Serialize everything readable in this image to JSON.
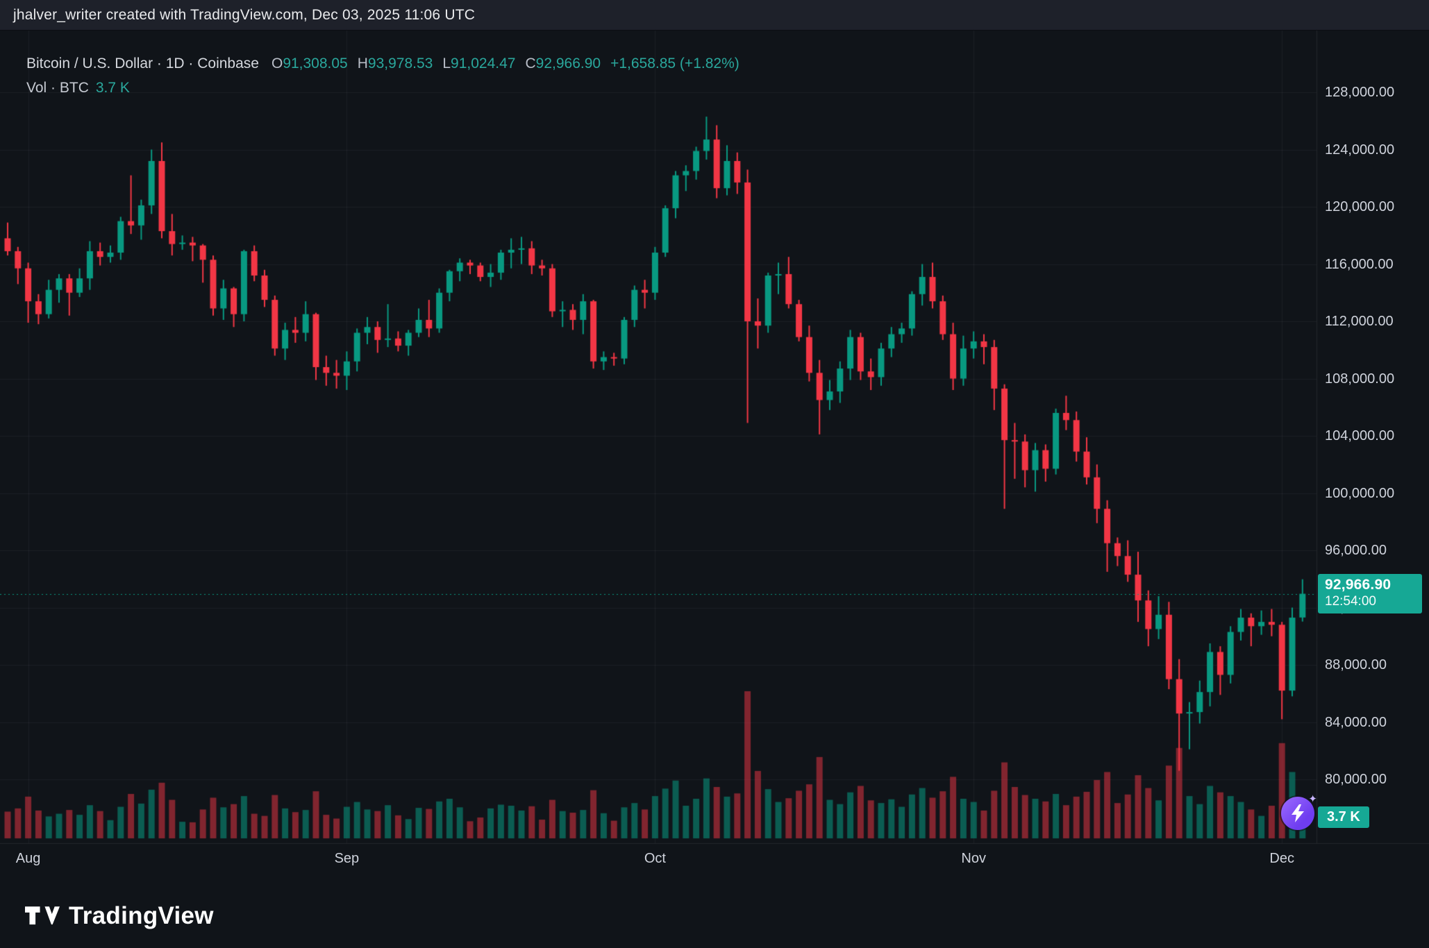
{
  "header": {
    "attribution": "jhalver_writer created with TradingView.com, Dec 03, 2025 11:06 UTC"
  },
  "legend": {
    "title": "Bitcoin / U.S. Dollar · 1D · Coinbase",
    "o_label": "O",
    "o_value": "91,308.05",
    "h_label": "H",
    "h_value": "93,978.53",
    "l_label": "L",
    "l_value": "91,024.47",
    "c_label": "C",
    "c_value": "92,966.90",
    "change": "+1,658.85 (+1.82%)",
    "vol_title": "Vol · BTC",
    "vol_value": "3.7 K"
  },
  "price_scale": {
    "last_price": "92,966.90",
    "countdown": "12:54:00"
  },
  "volume_badge": {
    "value": "3.7 K"
  },
  "footer": {
    "brand": "TradingView"
  },
  "colors": {
    "up": "#089981",
    "down": "#f23645",
    "value_text": "#2aa79c",
    "badge": "#16a895",
    "axis_text": "#cfd3dc",
    "bg": "#101419",
    "header_bg": "#1e212a",
    "vol_up": "rgba(8,153,129,0.55)",
    "vol_down": "rgba(242,54,69,0.5)",
    "grid": "rgba(240,243,250,0.055)"
  },
  "chart_data": {
    "type": "candlestick",
    "title": "Bitcoin / U.S. Dollar",
    "interval": "1D",
    "exchange": "Coinbase",
    "units": "prices in thousands of USD; volume in thousands of BTC",
    "ohlc_current": {
      "open": 91308.05,
      "high": 93978.53,
      "low": 91024.47,
      "close": 92966.9,
      "change_abs": 1658.85,
      "change_pct": 1.82
    },
    "volume_current_kbtc": 3.7,
    "price_axis": {
      "min": 80000,
      "max": 128000,
      "step": 4000
    },
    "time_axis_months": [
      {
        "label": "Aug",
        "index": 2
      },
      {
        "label": "Sep",
        "index": 33
      },
      {
        "label": "Oct",
        "index": 63
      },
      {
        "label": "Nov",
        "index": 94
      },
      {
        "label": "Dec",
        "index": 124
      }
    ],
    "candles": [
      [
        "Jul 30",
        117.8,
        118.9,
        116.6,
        116.9,
        5.0
      ],
      [
        "Jul 31",
        116.9,
        117.2,
        114.6,
        115.7,
        5.6
      ],
      [
        "Aug 1",
        115.7,
        116.1,
        111.9,
        113.4,
        7.8
      ],
      [
        "Aug 2",
        113.4,
        113.9,
        111.8,
        112.5,
        5.2
      ],
      [
        "Aug 3",
        112.5,
        114.9,
        112.2,
        114.2,
        4.1
      ],
      [
        "Aug 4",
        114.2,
        115.3,
        113.3,
        115.0,
        4.6
      ],
      [
        "Aug 5",
        115.0,
        115.3,
        112.4,
        114.0,
        5.3
      ],
      [
        "Aug 6",
        114.0,
        115.7,
        113.7,
        115.0,
        4.4
      ],
      [
        "Aug 7",
        115.0,
        117.6,
        114.2,
        116.9,
        6.2
      ],
      [
        "Aug 8",
        116.9,
        117.5,
        115.9,
        116.5,
        5.1
      ],
      [
        "Aug 9",
        116.5,
        117.3,
        116.1,
        116.8,
        3.4
      ],
      [
        "Aug 10",
        116.8,
        119.3,
        116.3,
        119.0,
        5.9
      ],
      [
        "Aug 11",
        119.0,
        122.2,
        118.1,
        118.7,
        8.3
      ],
      [
        "Aug 12",
        118.7,
        120.5,
        117.7,
        120.1,
        6.5
      ],
      [
        "Aug 13",
        120.1,
        124.0,
        119.5,
        123.2,
        9.1
      ],
      [
        "Aug 14",
        123.2,
        124.5,
        117.8,
        118.3,
        10.4
      ],
      [
        "Aug 15",
        118.3,
        119.5,
        116.6,
        117.4,
        7.2
      ],
      [
        "Aug 16",
        117.4,
        118.0,
        117.0,
        117.5,
        3.1
      ],
      [
        "Aug 17",
        117.5,
        117.9,
        116.2,
        117.3,
        3.0
      ],
      [
        "Aug 18",
        117.3,
        117.4,
        114.7,
        116.3,
        5.4
      ],
      [
        "Aug 19",
        116.3,
        116.6,
        112.4,
        112.9,
        7.6
      ],
      [
        "Aug 20",
        112.9,
        114.9,
        112.1,
        114.3,
        5.8
      ],
      [
        "Aug 21",
        114.3,
        114.4,
        111.6,
        112.5,
        6.4
      ],
      [
        "Aug 22",
        112.5,
        117.0,
        112.0,
        116.9,
        7.9
      ],
      [
        "Aug 23",
        116.9,
        117.3,
        114.8,
        115.2,
        4.6
      ],
      [
        "Aug 24",
        115.2,
        115.6,
        113.0,
        113.5,
        4.2
      ],
      [
        "Aug 25",
        113.5,
        113.8,
        109.6,
        110.1,
        8.1
      ],
      [
        "Aug 26",
        110.1,
        111.9,
        109.3,
        111.4,
        5.6
      ],
      [
        "Aug 27",
        111.4,
        112.3,
        110.5,
        111.2,
        4.9
      ],
      [
        "Aug 28",
        111.2,
        113.4,
        110.6,
        112.5,
        5.3
      ],
      [
        "Aug 29",
        112.5,
        112.6,
        107.9,
        108.8,
        8.8
      ],
      [
        "Aug 30",
        108.8,
        109.6,
        107.5,
        108.4,
        4.4
      ],
      [
        "Aug 31",
        108.4,
        109.3,
        107.3,
        108.2,
        3.7
      ],
      [
        "Sep 1",
        108.2,
        109.9,
        107.2,
        109.2,
        5.9
      ],
      [
        "Sep 2",
        109.2,
        111.5,
        108.5,
        111.2,
        6.8
      ],
      [
        "Sep 3",
        111.2,
        112.3,
        110.4,
        111.6,
        5.4
      ],
      [
        "Sep 4",
        111.6,
        112.0,
        109.8,
        110.7,
        5.1
      ],
      [
        "Sep 5",
        110.7,
        113.2,
        110.2,
        110.8,
        6.2
      ],
      [
        "Sep 6",
        110.8,
        111.3,
        109.9,
        110.3,
        4.3
      ],
      [
        "Sep 7",
        110.3,
        111.4,
        109.6,
        111.2,
        3.6
      ],
      [
        "Sep 8",
        111.2,
        112.9,
        110.9,
        112.1,
        5.7
      ],
      [
        "Sep 9",
        112.1,
        113.5,
        110.9,
        111.5,
        5.5
      ],
      [
        "Sep 10",
        111.5,
        114.3,
        111.2,
        114.0,
        6.9
      ],
      [
        "Sep 11",
        114.0,
        115.6,
        113.4,
        115.5,
        7.4
      ],
      [
        "Sep 12",
        115.5,
        116.4,
        114.8,
        116.1,
        5.8
      ],
      [
        "Sep 13",
        116.1,
        116.3,
        115.3,
        115.9,
        3.2
      ],
      [
        "Sep 14",
        115.9,
        116.1,
        114.8,
        115.1,
        3.9
      ],
      [
        "Sep 15",
        115.1,
        116.0,
        114.4,
        115.4,
        5.6
      ],
      [
        "Sep 16",
        115.4,
        117.0,
        114.9,
        116.8,
        6.3
      ],
      [
        "Sep 17",
        116.8,
        117.8,
        115.7,
        117.0,
        6.1
      ],
      [
        "Sep 18",
        117.0,
        117.9,
        116.0,
        117.1,
        5.2
      ],
      [
        "Sep 19",
        117.1,
        117.6,
        115.3,
        115.9,
        6.0
      ],
      [
        "Sep 20",
        115.9,
        116.3,
        115.2,
        115.7,
        3.5
      ],
      [
        "Sep 21",
        115.7,
        116.0,
        112.3,
        112.7,
        7.2
      ],
      [
        "Sep 22",
        112.7,
        113.4,
        111.6,
        112.8,
        5.1
      ],
      [
        "Sep 23",
        112.8,
        113.2,
        111.4,
        112.1,
        4.8
      ],
      [
        "Sep 24",
        112.1,
        113.9,
        111.1,
        113.4,
        5.3
      ],
      [
        "Sep 25",
        113.4,
        113.5,
        108.7,
        109.2,
        9.0
      ],
      [
        "Sep 26",
        109.2,
        109.9,
        108.6,
        109.5,
        4.7
      ],
      [
        "Sep 27",
        109.5,
        109.8,
        108.9,
        109.4,
        3.3
      ],
      [
        "Sep 28",
        109.4,
        112.3,
        109.0,
        112.1,
        5.8
      ],
      [
        "Sep 29",
        112.1,
        114.5,
        111.6,
        114.2,
        6.6
      ],
      [
        "Sep 30",
        114.2,
        114.9,
        112.9,
        114.0,
        5.4
      ],
      [
        "Oct 1",
        114.0,
        117.2,
        113.5,
        116.8,
        7.9
      ],
      [
        "Oct 2",
        116.8,
        120.1,
        116.5,
        119.9,
        9.3
      ],
      [
        "Oct 3",
        119.9,
        122.5,
        119.2,
        122.2,
        10.8
      ],
      [
        "Oct 4",
        122.2,
        122.9,
        121.1,
        122.5,
        6.1
      ],
      [
        "Oct 5",
        122.5,
        124.2,
        121.9,
        123.9,
        7.4
      ],
      [
        "Oct 6",
        123.9,
        126.3,
        123.3,
        124.7,
        11.2
      ],
      [
        "Oct 7",
        124.7,
        125.7,
        120.6,
        121.3,
        9.6
      ],
      [
        "Oct 8",
        121.3,
        124.3,
        120.8,
        123.2,
        7.8
      ],
      [
        "Oct 9",
        123.2,
        123.8,
        120.9,
        121.7,
        8.4
      ],
      [
        "Oct 10",
        121.7,
        122.6,
        104.9,
        112.0,
        27.5
      ],
      [
        "Oct 11",
        112.0,
        113.6,
        110.1,
        111.7,
        12.6
      ],
      [
        "Oct 12",
        111.7,
        115.4,
        111.2,
        115.2,
        9.2
      ],
      [
        "Oct 13",
        115.2,
        116.1,
        113.9,
        115.3,
        6.8
      ],
      [
        "Oct 14",
        115.3,
        116.5,
        112.9,
        113.2,
        7.5
      ],
      [
        "Oct 15",
        113.2,
        113.5,
        110.6,
        110.9,
        8.9
      ],
      [
        "Oct 16",
        110.9,
        111.7,
        107.8,
        108.4,
        10.1
      ],
      [
        "Oct 17",
        108.4,
        109.3,
        104.1,
        106.5,
        15.2
      ],
      [
        "Oct 18",
        106.5,
        107.9,
        105.8,
        107.1,
        7.2
      ],
      [
        "Oct 19",
        107.1,
        109.2,
        106.3,
        108.7,
        6.4
      ],
      [
        "Oct 20",
        108.7,
        111.4,
        107.9,
        110.9,
        8.6
      ],
      [
        "Oct 21",
        110.9,
        111.2,
        107.9,
        108.5,
        9.8
      ],
      [
        "Oct 22",
        108.5,
        109.4,
        107.2,
        108.1,
        7.1
      ],
      [
        "Oct 23",
        108.1,
        110.5,
        107.5,
        110.1,
        6.6
      ],
      [
        "Oct 24",
        110.1,
        111.6,
        109.5,
        111.1,
        7.3
      ],
      [
        "Oct 25",
        111.1,
        111.9,
        110.5,
        111.5,
        5.9
      ],
      [
        "Oct 26",
        111.5,
        114.1,
        111.0,
        113.9,
        8.2
      ],
      [
        "Oct 27",
        113.9,
        116.0,
        113.1,
        115.1,
        9.4
      ],
      [
        "Oct 28",
        115.1,
        116.1,
        112.9,
        113.4,
        7.6
      ],
      [
        "Oct 29",
        113.4,
        113.8,
        110.7,
        111.1,
        8.8
      ],
      [
        "Oct 30",
        111.1,
        111.9,
        107.2,
        108.0,
        11.5
      ],
      [
        "Oct 31",
        108.0,
        111.0,
        107.5,
        110.1,
        7.4
      ],
      [
        "Nov 1",
        110.1,
        111.3,
        109.4,
        110.6,
        6.8
      ],
      [
        "Nov 2",
        110.6,
        111.1,
        109.0,
        110.2,
        5.2
      ],
      [
        "Nov 3",
        110.2,
        110.7,
        105.8,
        107.3,
        8.9
      ],
      [
        "Nov 4",
        107.3,
        107.6,
        98.9,
        103.7,
        14.2
      ],
      [
        "Nov 5",
        103.7,
        104.9,
        101.0,
        103.6,
        9.6
      ],
      [
        "Nov 6",
        103.6,
        104.1,
        100.4,
        101.6,
        8.1
      ],
      [
        "Nov 7",
        101.6,
        103.5,
        100.1,
        103.0,
        7.4
      ],
      [
        "Nov 8",
        103.0,
        103.4,
        100.8,
        101.7,
        6.9
      ],
      [
        "Nov 9",
        101.7,
        105.9,
        101.3,
        105.6,
        8.3
      ],
      [
        "Nov 10",
        105.6,
        106.8,
        104.4,
        105.1,
        6.2
      ],
      [
        "Nov 11",
        105.1,
        105.7,
        102.2,
        102.9,
        7.8
      ],
      [
        "Nov 12",
        102.9,
        103.9,
        100.6,
        101.1,
        8.7
      ],
      [
        "Nov 13",
        101.1,
        102.0,
        97.9,
        98.9,
        10.9
      ],
      [
        "Nov 14",
        98.9,
        99.5,
        94.5,
        96.5,
        12.4
      ],
      [
        "Nov 15",
        96.5,
        96.9,
        94.9,
        95.6,
        6.6
      ],
      [
        "Nov 16",
        95.6,
        96.7,
        93.8,
        94.3,
        8.2
      ],
      [
        "Nov 17",
        94.3,
        95.9,
        91.0,
        92.5,
        11.8
      ],
      [
        "Nov 18",
        92.5,
        93.2,
        89.3,
        90.5,
        9.4
      ],
      [
        "Nov 19",
        90.5,
        92.8,
        89.8,
        91.5,
        7.1
      ],
      [
        "Nov 20",
        91.5,
        92.4,
        86.3,
        87.0,
        13.6
      ],
      [
        "Nov 21",
        87.0,
        88.4,
        80.6,
        84.6,
        16.9
      ],
      [
        "Nov 22",
        84.6,
        85.4,
        82.1,
        84.7,
        7.9
      ],
      [
        "Nov 23",
        84.7,
        86.9,
        83.9,
        86.1,
        6.4
      ],
      [
        "Nov 24",
        86.1,
        89.5,
        85.1,
        88.9,
        9.8
      ],
      [
        "Nov 25",
        88.9,
        89.3,
        85.9,
        87.3,
        8.6
      ],
      [
        "Nov 26",
        87.3,
        90.7,
        86.7,
        90.3,
        7.9
      ],
      [
        "Nov 27",
        90.3,
        91.9,
        89.7,
        91.3,
        6.8
      ],
      [
        "Nov 28",
        91.3,
        91.6,
        89.3,
        90.7,
        5.4
      ],
      [
        "Nov 29",
        90.7,
        91.8,
        90.1,
        91.0,
        4.2
      ],
      [
        "Nov 30",
        91.0,
        91.9,
        90.0,
        90.8,
        6.1
      ],
      [
        "Dec 1",
        90.8,
        91.0,
        84.2,
        86.2,
        17.8
      ],
      [
        "Dec 2",
        86.2,
        92.0,
        85.8,
        91.3,
        12.4
      ],
      [
        "Dec 3",
        91.308,
        93.979,
        91.024,
        92.967,
        3.7
      ]
    ]
  }
}
